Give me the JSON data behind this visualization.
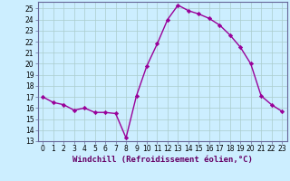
{
  "x": [
    0,
    1,
    2,
    3,
    4,
    5,
    6,
    7,
    8,
    9,
    10,
    11,
    12,
    13,
    14,
    15,
    16,
    17,
    18,
    19,
    20,
    21,
    22,
    23
  ],
  "y": [
    17.0,
    16.5,
    16.3,
    15.8,
    16.0,
    15.6,
    15.6,
    15.5,
    13.3,
    17.1,
    19.8,
    21.8,
    24.0,
    25.3,
    24.8,
    24.5,
    24.1,
    23.5,
    22.6,
    21.5,
    20.0,
    17.1,
    16.3,
    15.7
  ],
  "line_color": "#990099",
  "marker": "D",
  "marker_size": 2.2,
  "bg_color": "#cceeff",
  "grid_color": "#aacccc",
  "xlabel": "Windchill (Refroidissement éolien,°C)",
  "xlim": [
    -0.5,
    23.5
  ],
  "ylim": [
    13,
    25.6
  ],
  "yticks": [
    13,
    14,
    15,
    16,
    17,
    18,
    19,
    20,
    21,
    22,
    23,
    24,
    25
  ],
  "xticks": [
    0,
    1,
    2,
    3,
    4,
    5,
    6,
    7,
    8,
    9,
    10,
    11,
    12,
    13,
    14,
    15,
    16,
    17,
    18,
    19,
    20,
    21,
    22,
    23
  ],
  "font_size_xlabel": 6.5,
  "font_size_ticks": 5.5,
  "line_width": 1.0,
  "spine_color": "#666699"
}
